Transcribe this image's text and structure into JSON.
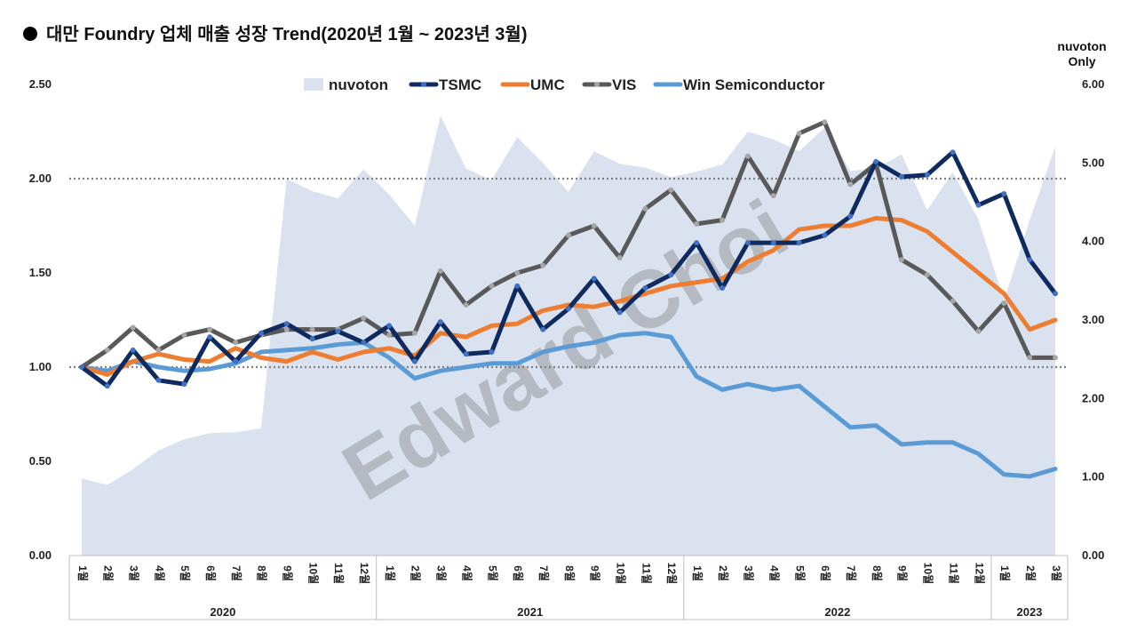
{
  "title": "대만 Foundry 업체 매출 성장 Trend(2020년 1월 ~ 2023년 3월)",
  "right_axis_title": "nuvoton Only",
  "watermark": "Edward Choi",
  "colors": {
    "nuvoton": "#dae2f0",
    "TSMC": "#0e2a5f",
    "TSMC_marker": "#3f72c4",
    "UMC": "#ed7d31",
    "VIS": "#595959",
    "VIS_marker": "#a6a6a6",
    "Win Semiconductor": "#5b9bd5",
    "gridline": "#808080"
  },
  "chart_data": {
    "type": "line",
    "title": "대만 Foundry 업체 매출 성장 Trend(2020년 1월 ~ 2023년 3월)",
    "xlabel": "",
    "ylabel": "",
    "ylim": [
      0,
      2.5
    ],
    "y_ticks": [
      "0.00",
      "0.50",
      "1.00",
      "1.50",
      "2.00",
      "2.50"
    ],
    "y_right_label": "nuvoton Only",
    "y_right_lim": [
      0,
      6
    ],
    "y_right_ticks": [
      "0.00",
      "1.00",
      "2.00",
      "3.00",
      "4.00",
      "5.00",
      "6.00"
    ],
    "dotted_gridlines": [
      1.0,
      2.0
    ],
    "legend_position": "top",
    "month_label_suffix": "월",
    "years": [
      {
        "label": "2020",
        "months": 12
      },
      {
        "label": "2021",
        "months": 12
      },
      {
        "label": "2022",
        "months": 12
      },
      {
        "label": "2023",
        "months": 3
      }
    ],
    "categories": [
      "1",
      "2",
      "3",
      "4",
      "5",
      "6",
      "7",
      "8",
      "9",
      "10",
      "11",
      "12",
      "1",
      "2",
      "3",
      "4",
      "5",
      "6",
      "7",
      "8",
      "9",
      "10",
      "11",
      "12",
      "1",
      "2",
      "3",
      "4",
      "5",
      "6",
      "7",
      "8",
      "9",
      "10",
      "11",
      "12",
      "1",
      "2",
      "3"
    ],
    "series": [
      {
        "name": "nuvoton",
        "type": "area",
        "axis": "right",
        "values": [
          0.98,
          0.9,
          1.1,
          1.34,
          1.48,
          1.56,
          1.57,
          1.62,
          4.8,
          4.64,
          4.55,
          4.92,
          4.6,
          4.2,
          5.6,
          4.93,
          4.78,
          5.33,
          5.0,
          4.63,
          5.15,
          4.99,
          4.94,
          4.82,
          4.89,
          4.98,
          5.4,
          5.3,
          5.15,
          5.45,
          4.9,
          4.93,
          5.11,
          4.4,
          4.88,
          4.28,
          3.25,
          4.27,
          5.21
        ]
      },
      {
        "name": "TSMC",
        "type": "line",
        "axis": "left",
        "marker": true,
        "values": [
          1.0,
          0.9,
          1.09,
          0.93,
          0.91,
          1.16,
          1.03,
          1.18,
          1.23,
          1.15,
          1.19,
          1.13,
          1.22,
          1.03,
          1.24,
          1.07,
          1.08,
          1.43,
          1.2,
          1.31,
          1.47,
          1.29,
          1.42,
          1.49,
          1.66,
          1.42,
          1.66,
          1.66,
          1.66,
          1.7,
          1.8,
          2.09,
          2.01,
          2.02,
          2.14,
          1.86,
          1.92,
          1.57,
          1.39
        ]
      },
      {
        "name": "UMC",
        "type": "line",
        "axis": "left",
        "marker": false,
        "values": [
          1.0,
          0.96,
          1.03,
          1.07,
          1.04,
          1.03,
          1.1,
          1.05,
          1.03,
          1.08,
          1.04,
          1.08,
          1.1,
          1.06,
          1.18,
          1.16,
          1.22,
          1.23,
          1.3,
          1.33,
          1.32,
          1.35,
          1.39,
          1.43,
          1.45,
          1.47,
          1.56,
          1.62,
          1.73,
          1.75,
          1.75,
          1.79,
          1.78,
          1.72,
          1.61,
          1.5,
          1.39,
          1.2,
          1.25
        ]
      },
      {
        "name": "VIS",
        "type": "line",
        "axis": "left",
        "marker": true,
        "values": [
          1.0,
          1.09,
          1.21,
          1.09,
          1.17,
          1.2,
          1.13,
          1.17,
          1.2,
          1.2,
          1.2,
          1.26,
          1.17,
          1.18,
          1.51,
          1.33,
          1.43,
          1.5,
          1.54,
          1.7,
          1.75,
          1.58,
          1.84,
          1.94,
          1.76,
          1.78,
          2.12,
          1.91,
          2.24,
          2.3,
          1.97,
          2.08,
          1.57,
          1.49,
          1.35,
          1.19,
          1.34,
          1.05,
          1.05
        ]
      },
      {
        "name": "Win Semiconductor",
        "type": "line",
        "axis": "left",
        "marker": false,
        "values": [
          1.0,
          0.98,
          1.03,
          1.0,
          0.98,
          0.99,
          1.02,
          1.08,
          1.09,
          1.1,
          1.12,
          1.13,
          1.05,
          0.94,
          0.98,
          1.0,
          1.02,
          1.02,
          1.08,
          1.11,
          1.13,
          1.17,
          1.18,
          1.16,
          0.95,
          0.88,
          0.91,
          0.88,
          0.9,
          0.79,
          0.68,
          0.69,
          0.59,
          0.6,
          0.6,
          0.54,
          0.43,
          0.42,
          0.46
        ]
      }
    ]
  }
}
